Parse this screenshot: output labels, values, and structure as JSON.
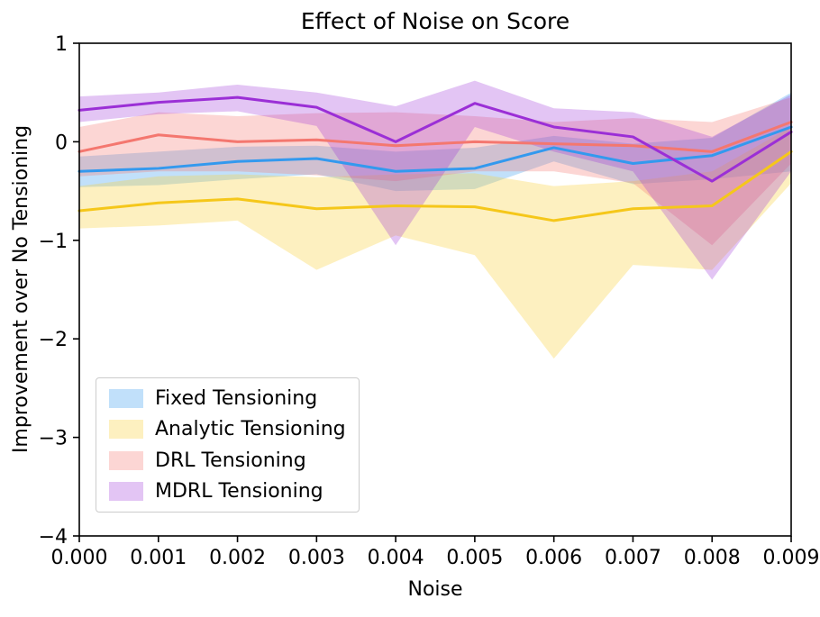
{
  "chart_data": {
    "type": "line",
    "title": "Effect of Noise on Score",
    "xlabel": "Noise",
    "ylabel": "Improvement over No Tensioning",
    "xlim": [
      0,
      0.009
    ],
    "ylim": [
      -4,
      1
    ],
    "grid": false,
    "legend_position": "lower left",
    "xtick_values": [
      0,
      0.001,
      0.002,
      0.003,
      0.004,
      0.005,
      0.006,
      0.007,
      0.008,
      0.009
    ],
    "xtick_labels": [
      "0.000",
      "0.001",
      "0.002",
      "0.003",
      "0.004",
      "0.005",
      "0.006",
      "0.007",
      "0.008",
      "0.009"
    ],
    "ytick_values": [
      1,
      0,
      -1,
      -2,
      -3,
      -4
    ],
    "ytick_labels": [
      "1",
      "0",
      "−1",
      "−2",
      "−3",
      "−4"
    ],
    "x": [
      0,
      0.001,
      0.002,
      0.003,
      0.004,
      0.005,
      0.006,
      0.007,
      0.008,
      0.009
    ],
    "series": [
      {
        "id": "fixed-tensioning",
        "name": "Fixed Tensioning",
        "color": "#3399ee",
        "band_color": "rgba(51,153,238,0.30)",
        "values": [
          -0.3,
          -0.27,
          -0.2,
          -0.17,
          -0.3,
          -0.27,
          -0.06,
          -0.22,
          -0.14,
          0.15
        ],
        "band_upper": [
          -0.15,
          -0.1,
          -0.05,
          -0.04,
          -0.1,
          -0.06,
          0.06,
          -0.02,
          0.04,
          0.5
        ],
        "band_lower": [
          -0.46,
          -0.44,
          -0.38,
          -0.33,
          -0.5,
          -0.48,
          -0.2,
          -0.43,
          -0.38,
          -0.3
        ]
      },
      {
        "id": "analytic-tensioning",
        "name": "Analytic Tensioning",
        "color": "#f5c71a",
        "band_color": "rgba(248,207,60,0.32)",
        "values": [
          -0.7,
          -0.62,
          -0.58,
          -0.68,
          -0.65,
          -0.66,
          -0.8,
          -0.68,
          -0.65,
          -0.1
        ],
        "band_upper": [
          -0.45,
          -0.35,
          -0.33,
          -0.36,
          -0.33,
          -0.32,
          -0.45,
          -0.4,
          -0.3,
          0.15
        ],
        "band_lower": [
          -0.88,
          -0.85,
          -0.8,
          -1.3,
          -0.95,
          -1.15,
          -2.2,
          -1.25,
          -1.3,
          -0.42
        ]
      },
      {
        "id": "drl-tensioning",
        "name": "DRL Tensioning",
        "color": "#f4776f",
        "band_color": "rgba(244,119,111,0.30)",
        "values": [
          -0.1,
          0.07,
          0.0,
          0.02,
          -0.04,
          0.0,
          -0.02,
          -0.04,
          -0.1,
          0.2
        ],
        "band_upper": [
          0.15,
          0.3,
          0.26,
          0.29,
          0.3,
          0.26,
          0.2,
          0.24,
          0.2,
          0.45
        ],
        "band_lower": [
          -0.35,
          -0.3,
          -0.3,
          -0.34,
          -0.4,
          -0.3,
          -0.3,
          -0.42,
          -1.05,
          -0.22
        ]
      },
      {
        "id": "mdrl-tensioning",
        "name": "MDRL Tensioning",
        "color": "#9b2fd6",
        "band_color": "rgba(155,47,214,0.28)",
        "values": [
          0.32,
          0.4,
          0.45,
          0.35,
          0.0,
          0.39,
          0.15,
          0.05,
          -0.4,
          0.1
        ],
        "band_upper": [
          0.46,
          0.5,
          0.58,
          0.5,
          0.36,
          0.62,
          0.34,
          0.3,
          0.05,
          0.48
        ],
        "band_lower": [
          0.2,
          0.28,
          0.31,
          0.16,
          -1.05,
          0.15,
          -0.1,
          -0.3,
          -1.4,
          -0.3
        ]
      }
    ]
  }
}
